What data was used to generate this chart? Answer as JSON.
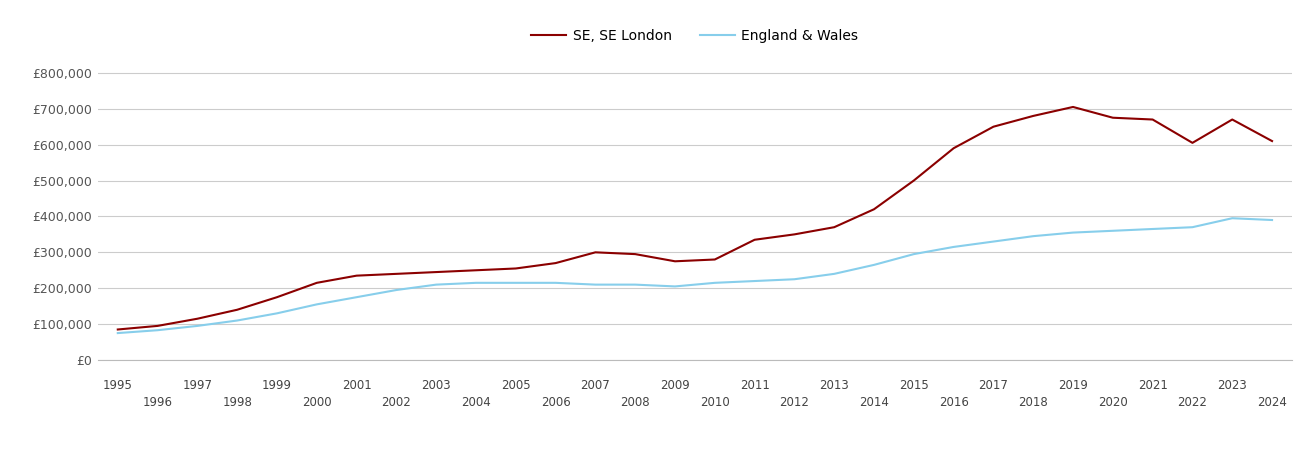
{
  "se_london_years": [
    1995,
    1996,
    1997,
    1998,
    1999,
    2000,
    2001,
    2002,
    2003,
    2004,
    2005,
    2006,
    2007,
    2008,
    2009,
    2010,
    2011,
    2012,
    2013,
    2014,
    2015,
    2016,
    2017,
    2018,
    2019,
    2020,
    2021,
    2022,
    2023,
    2024
  ],
  "se_london_values": [
    85000,
    95000,
    115000,
    140000,
    175000,
    215000,
    235000,
    240000,
    245000,
    250000,
    255000,
    270000,
    300000,
    295000,
    275000,
    280000,
    335000,
    350000,
    370000,
    420000,
    500000,
    590000,
    650000,
    680000,
    705000,
    675000,
    670000,
    605000,
    670000,
    610000
  ],
  "ew_years": [
    1995,
    1996,
    1997,
    1998,
    1999,
    2000,
    2001,
    2002,
    2003,
    2004,
    2005,
    2006,
    2007,
    2008,
    2009,
    2010,
    2011,
    2012,
    2013,
    2014,
    2015,
    2016,
    2017,
    2018,
    2019,
    2020,
    2021,
    2022,
    2023,
    2024
  ],
  "ew_values": [
    75000,
    83000,
    95000,
    110000,
    130000,
    155000,
    175000,
    195000,
    210000,
    215000,
    215000,
    215000,
    210000,
    210000,
    205000,
    215000,
    220000,
    225000,
    240000,
    265000,
    295000,
    315000,
    330000,
    345000,
    355000,
    360000,
    365000,
    370000,
    395000,
    390000
  ],
  "se_color": "#8B0000",
  "ew_color": "#87CEEB",
  "se_label": "SE, SE London",
  "ew_label": "England & Wales",
  "ylim": [
    0,
    840000
  ],
  "yticks": [
    0,
    100000,
    200000,
    300000,
    400000,
    500000,
    600000,
    700000,
    800000
  ],
  "xlim": [
    1994.5,
    2024.5
  ],
  "background_color": "#ffffff",
  "grid_color": "#cccccc",
  "line_width": 1.5,
  "odd_years": [
    1995,
    1997,
    1999,
    2001,
    2003,
    2005,
    2007,
    2009,
    2011,
    2013,
    2015,
    2017,
    2019,
    2021,
    2023
  ],
  "even_years": [
    1996,
    1998,
    2000,
    2002,
    2004,
    2006,
    2008,
    2010,
    2012,
    2014,
    2016,
    2018,
    2020,
    2022,
    2024
  ]
}
